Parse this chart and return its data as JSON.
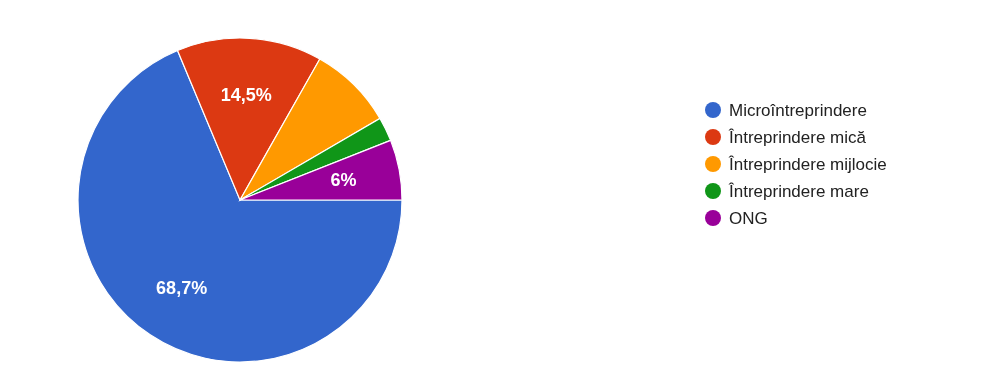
{
  "chart_data": {
    "type": "pie",
    "categories": [
      "Microîntreprindere",
      "Întreprindere mică",
      "Întreprindere mijlocie",
      "Întreprindere mare",
      "ONG"
    ],
    "values": [
      68.7,
      14.5,
      8.4,
      2.4,
      6
    ],
    "colors": [
      "#3366cc",
      "#dc3912",
      "#ff9900",
      "#109618",
      "#990099"
    ],
    "value_labels": [
      "68,7%",
      "14,5%",
      null,
      null,
      "6%"
    ],
    "legend": "right"
  }
}
